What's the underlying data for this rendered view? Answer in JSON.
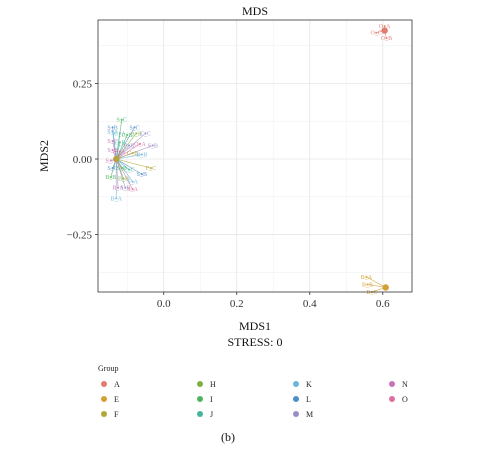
{
  "chart_data": {
    "type": "scatter",
    "title": "MDS",
    "xlabel": "MDS1",
    "ylabel": "MDS2",
    "subtitle": "STRESS: 0",
    "xlim": [
      -0.18,
      0.68
    ],
    "ylim": [
      -0.44,
      0.46
    ],
    "x_ticks": [
      {
        "value": 0.0,
        "label": "0.0"
      },
      {
        "value": 0.2,
        "label": "0.2"
      },
      {
        "value": 0.4,
        "label": "0.4"
      },
      {
        "value": 0.6,
        "label": "0.6"
      }
    ],
    "y_ticks": [
      {
        "value": 0.25,
        "label": "0.25"
      },
      {
        "value": 0.0,
        "label": "0.00"
      },
      {
        "value": -0.25,
        "label": "−0.25"
      }
    ],
    "grid": true,
    "groups": [
      {
        "name": "A",
        "color": "#E07B6E"
      },
      {
        "name": "E",
        "color": "#D4A035"
      },
      {
        "name": "F",
        "color": "#B3A638"
      },
      {
        "name": "H",
        "color": "#7FB040"
      },
      {
        "name": "I",
        "color": "#4FB462"
      },
      {
        "name": "J",
        "color": "#47B59A"
      },
      {
        "name": "K",
        "color": "#6BB3D8"
      },
      {
        "name": "L",
        "color": "#4F8FC9"
      },
      {
        "name": "M",
        "color": "#9B8BC6"
      },
      {
        "name": "N",
        "color": "#C774B8"
      },
      {
        "name": "O",
        "color": "#DD6F9F"
      }
    ],
    "centroids": [
      {
        "group": "A",
        "x": 0.605,
        "y": 0.425
      },
      {
        "group": "E",
        "x": 0.608,
        "y": -0.425
      },
      {
        "group": "F",
        "x": -0.13,
        "y": 0.0
      }
    ],
    "points": [
      {
        "label": "O_A",
        "group": "A",
        "x": 0.605,
        "y": 0.44
      },
      {
        "label": "O_C",
        "group": "A",
        "x": 0.582,
        "y": 0.418
      },
      {
        "label": "O_B",
        "group": "A",
        "x": 0.61,
        "y": 0.4
      },
      {
        "label": "B_A",
        "group": "E",
        "x": 0.555,
        "y": -0.39
      },
      {
        "label": "B_B",
        "group": "E",
        "x": 0.558,
        "y": -0.415
      },
      {
        "label": "B_C",
        "group": "E",
        "x": 0.57,
        "y": -0.44
      },
      {
        "label": "S_C",
        "group": "I",
        "x": -0.115,
        "y": 0.13
      },
      {
        "label": "S_B",
        "group": "L",
        "x": -0.14,
        "y": 0.105
      },
      {
        "label": "S_C",
        "group": "L",
        "x": -0.08,
        "y": 0.105
      },
      {
        "label": "S_A",
        "group": "K",
        "x": -0.14,
        "y": 0.09
      },
      {
        "label": "C_A",
        "group": "J",
        "x": -0.12,
        "y": 0.085
      },
      {
        "label": "C_B",
        "group": "I",
        "x": -0.1,
        "y": 0.08
      },
      {
        "label": "A_B",
        "group": "H",
        "x": -0.075,
        "y": 0.085
      },
      {
        "label": "C_C",
        "group": "M",
        "x": -0.05,
        "y": 0.085
      },
      {
        "label": "S_C",
        "group": "N",
        "x": -0.14,
        "y": 0.06
      },
      {
        "label": "C_B",
        "group": "J",
        "x": -0.12,
        "y": 0.055
      },
      {
        "label": "P_B",
        "group": "M",
        "x": -0.095,
        "y": 0.045
      },
      {
        "label": "O_A",
        "group": "O",
        "x": -0.065,
        "y": 0.05
      },
      {
        "label": "S_B",
        "group": "M",
        "x": -0.03,
        "y": 0.045
      },
      {
        "label": "S_B",
        "group": "N",
        "x": -0.14,
        "y": 0.03
      },
      {
        "label": "S_A",
        "group": "O",
        "x": -0.12,
        "y": 0.025
      },
      {
        "label": "C_B",
        "group": "F",
        "x": -0.085,
        "y": 0.02
      },
      {
        "label": "B_B",
        "group": "K",
        "x": -0.06,
        "y": 0.015
      },
      {
        "label": "S_A",
        "group": "N",
        "x": -0.145,
        "y": -0.005
      },
      {
        "label": "S_C",
        "group": "L",
        "x": -0.14,
        "y": -0.03
      },
      {
        "label": "S_B",
        "group": "I",
        "x": -0.115,
        "y": -0.03
      },
      {
        "label": "C_C",
        "group": "J",
        "x": -0.095,
        "y": -0.035
      },
      {
        "label": "F_C",
        "group": "F",
        "x": -0.035,
        "y": -0.03
      },
      {
        "label": "S_B",
        "group": "L",
        "x": -0.06,
        "y": -0.05
      },
      {
        "label": "B_B",
        "group": "I",
        "x": -0.145,
        "y": -0.06
      },
      {
        "label": "B_B",
        "group": "H",
        "x": -0.11,
        "y": -0.065
      },
      {
        "label": "S_A",
        "group": "K",
        "x": -0.085,
        "y": -0.075
      },
      {
        "label": "B_A",
        "group": "N",
        "x": -0.125,
        "y": -0.095
      },
      {
        "label": "S_B",
        "group": "M",
        "x": -0.105,
        "y": -0.095
      },
      {
        "label": "S_A",
        "group": "O",
        "x": -0.085,
        "y": -0.1
      },
      {
        "label": "B_A",
        "group": "K",
        "x": -0.13,
        "y": -0.13
      }
    ],
    "legend": {
      "title": "Group",
      "placement": "bottom",
      "columns": 4
    }
  },
  "panel_label": "(b)"
}
